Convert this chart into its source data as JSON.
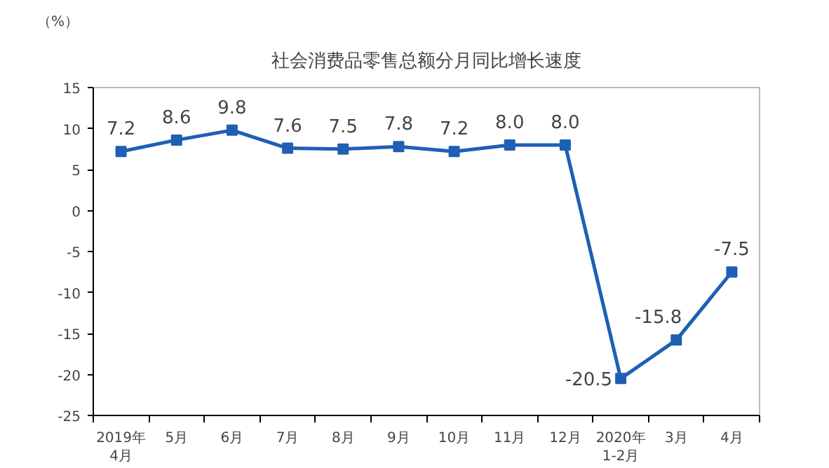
{
  "chart_data": {
    "type": "line",
    "title": "社会消费品零售总额分月同比增长速度",
    "ylabel": "（%）",
    "categories": [
      "2019年\n4月",
      "5月",
      "6月",
      "7月",
      "8月",
      "9月",
      "10月",
      "11月",
      "12月",
      "2020年\n1-2月",
      "3月",
      "4月"
    ],
    "values": [
      7.2,
      8.6,
      9.8,
      7.6,
      7.5,
      7.8,
      7.2,
      8.0,
      8.0,
      -20.5,
      -15.8,
      -7.5
    ],
    "value_labels": [
      "7.2",
      "8.6",
      "9.8",
      "7.6",
      "7.5",
      "7.8",
      "7.2",
      "8.0",
      "8.0",
      "-20.5",
      "-15.8",
      "-7.5"
    ],
    "color": "#1f5fb4",
    "marker": "square",
    "line_style": "solid",
    "grid": false,
    "ylim": [
      -25,
      15
    ],
    "yticks": [
      -25,
      -20,
      -15,
      -10,
      -5,
      0,
      5,
      10,
      15
    ]
  }
}
